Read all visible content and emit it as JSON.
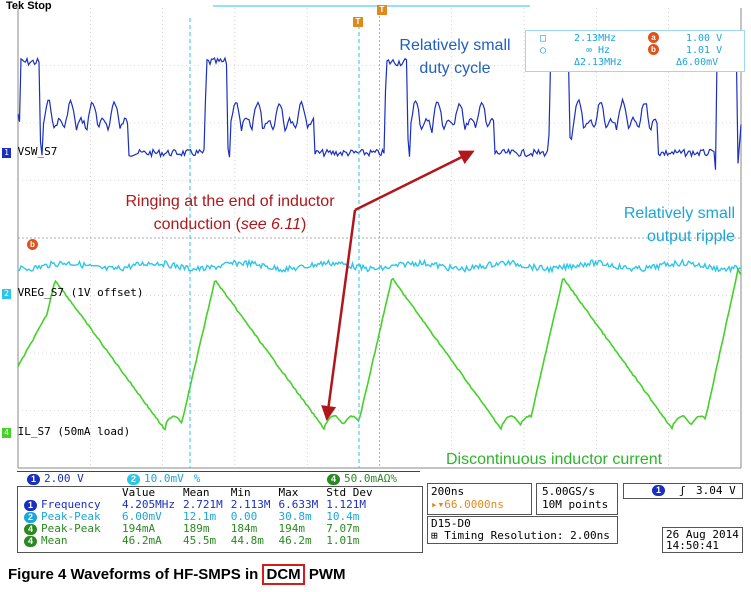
{
  "header": {
    "brand": "Tek",
    "status": "Stop"
  },
  "annotations": {
    "duty_cycle": [
      "Relatively small",
      "duty cycle"
    ],
    "ripple": [
      "Relatively small",
      "output ripple"
    ],
    "ringing_line1": "Ringing at the end of inductor",
    "ringing_line2_prefix": "conduction (",
    "ringing_line2_italic": "see 6.11",
    "ringing_line2_suffix": ")",
    "dcm_current": "Discontinuous inductor current"
  },
  "channels": {
    "ch1": {
      "marker": "1",
      "label": "VSW_S7"
    },
    "ch2": {
      "marker": "2",
      "label": "VREG_S7 (1V offset)"
    },
    "ch4": {
      "marker": "4",
      "label": "IL_S7 (50mA load)"
    }
  },
  "cursors": {
    "row1_time": "2.13MHz",
    "row1_badge": "a",
    "row1_volt": "1.00 V",
    "row2_time": "∞ Hz",
    "row2_badge": "b",
    "row2_volt": "1.01 V",
    "row3_time": "Δ2.13MHz",
    "row3_volt": "Δ6.00mV"
  },
  "scale": {
    "ch1": {
      "num": "1",
      "value": "2.00 V"
    },
    "ch2": {
      "num": "2",
      "value": "10.0mV",
      "suffix": "%"
    },
    "ch4": {
      "num": "4",
      "value": "50.0mAΩ%"
    }
  },
  "measurements": {
    "headers": [
      "",
      "Value",
      "Mean",
      "Min",
      "Max",
      "Std Dev"
    ],
    "rows": [
      {
        "ch": "1",
        "name": "Frequency",
        "value": "4.205MHz",
        "mean": "2.721M",
        "min": "2.113M",
        "max": "6.633M",
        "std": "1.121M",
        "color": "#1a2fbf"
      },
      {
        "ch": "2",
        "name": "Peak-Peak",
        "value": "6.00mV",
        "mean": "12.1m",
        "min": "0.00",
        "max": "30.8m",
        "std": "10.4m",
        "color": "#1aa6d8"
      },
      {
        "ch": "4",
        "name": "Peak-Peak",
        "value": "194mA",
        "mean": "189m",
        "min": "184m",
        "max": "194m",
        "std": "7.07m",
        "color": "#2a8a22"
      },
      {
        "ch": "4",
        "name": "Mean",
        "value": "46.2mA",
        "mean": "45.5m",
        "min": "44.8m",
        "max": "46.2m",
        "std": "1.01m",
        "color": "#2a8a22"
      }
    ]
  },
  "timebase": {
    "time_div": "200ns",
    "delay": "66.0000ns",
    "sample_rate": "5.00GS/s",
    "points": "10M points"
  },
  "trigger": {
    "ch": "1",
    "slope": "ʃ",
    "level": "3.04 V"
  },
  "digital": {
    "channels": "D15-D0",
    "resolution": "Timing Resolution: 2.00ns"
  },
  "datetime": {
    "date": "26 Aug 2014",
    "time": "14:50:41"
  },
  "caption": {
    "prefix": "Figure 4    Waveforms of HF-SMPS in ",
    "boxed": "DCM",
    "suffix": " PWM"
  },
  "colors": {
    "ch1": "#1a2fbf",
    "ch2": "#2ec6e8",
    "ch4": "#45d12a",
    "arrow": "#b0161a",
    "grid": "#b8b8b8"
  },
  "icons": {
    "trigger_marker": "T",
    "cursor_a": "a",
    "cursor_b": "b"
  }
}
